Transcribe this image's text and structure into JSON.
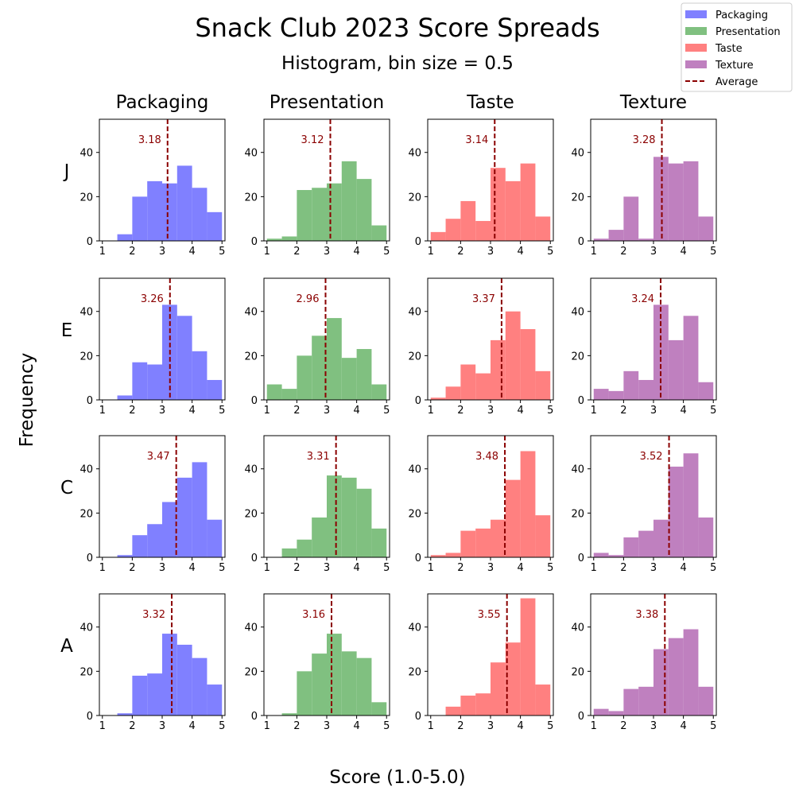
{
  "title": "Snack Club 2023 Score Spreads",
  "subtitle": "Histogram, bin size = 0.5",
  "xlabel": "Score (1.0-5.0)",
  "ylabel": "Frequency",
  "legend": {
    "placement": "top-right",
    "items": [
      {
        "label": "Packaging",
        "color": "#8080ff",
        "kind": "patch"
      },
      {
        "label": "Presentation",
        "color": "#80c080",
        "kind": "patch"
      },
      {
        "label": "Taste",
        "color": "#ff8080",
        "kind": "patch"
      },
      {
        "label": "Texture",
        "color": "#bf80bf",
        "kind": "patch"
      },
      {
        "label": "Average",
        "color": "#8b0000",
        "kind": "dashed-line"
      }
    ]
  },
  "chart_data": {
    "type": "bar",
    "layout": "small-multiples histogram grid",
    "columns": [
      "Packaging",
      "Presentation",
      "Taste",
      "Texture"
    ],
    "rows": [
      "J",
      "E",
      "C",
      "A"
    ],
    "series_colors": {
      "Packaging": "#8080ff",
      "Presentation": "#80c080",
      "Taste": "#ff8080",
      "Texture": "#bf80bf"
    },
    "average_color": "#8b0000",
    "bin_edges": [
      1.0,
      1.5,
      2.0,
      2.5,
      3.0,
      3.5,
      4.0,
      4.5,
      5.0
    ],
    "xlim": [
      0.9,
      5.1
    ],
    "ylim": [
      0,
      55
    ],
    "xticks": [
      1,
      2,
      3,
      4,
      5
    ],
    "yticks": [
      0,
      20,
      40
    ],
    "grid": false,
    "panels": [
      {
        "row": "J",
        "column": "Packaging",
        "counts": [
          0,
          3,
          20,
          27,
          26,
          34,
          24,
          13
        ],
        "average": 3.18
      },
      {
        "row": "J",
        "column": "Presentation",
        "counts": [
          1,
          2,
          23,
          24,
          26,
          36,
          28,
          7
        ],
        "average": 3.12
      },
      {
        "row": "J",
        "column": "Taste",
        "counts": [
          4,
          10,
          18,
          9,
          33,
          27,
          35,
          11
        ],
        "average": 3.14
      },
      {
        "row": "J",
        "column": "Texture",
        "counts": [
          1,
          5,
          20,
          1,
          38,
          35,
          36,
          11
        ],
        "average": 3.28
      },
      {
        "row": "E",
        "column": "Packaging",
        "counts": [
          0,
          2,
          17,
          16,
          43,
          38,
          22,
          9
        ],
        "average": 3.26
      },
      {
        "row": "E",
        "column": "Presentation",
        "counts": [
          7,
          5,
          20,
          29,
          37,
          19,
          23,
          7
        ],
        "average": 2.96
      },
      {
        "row": "E",
        "column": "Taste",
        "counts": [
          1,
          6,
          16,
          12,
          27,
          40,
          32,
          13
        ],
        "average": 3.37
      },
      {
        "row": "E",
        "column": "Texture",
        "counts": [
          5,
          4,
          13,
          9,
          43,
          27,
          38,
          8
        ],
        "average": 3.24
      },
      {
        "row": "C",
        "column": "Packaging",
        "counts": [
          0,
          1,
          10,
          15,
          25,
          36,
          43,
          17
        ],
        "average": 3.47
      },
      {
        "row": "C",
        "column": "Presentation",
        "counts": [
          0,
          4,
          8,
          18,
          37,
          36,
          31,
          13
        ],
        "average": 3.31
      },
      {
        "row": "C",
        "column": "Taste",
        "counts": [
          1,
          2,
          12,
          13,
          17,
          35,
          48,
          19
        ],
        "average": 3.48
      },
      {
        "row": "C",
        "column": "Texture",
        "counts": [
          2,
          1,
          9,
          12,
          17,
          41,
          47,
          18
        ],
        "average": 3.52
      },
      {
        "row": "A",
        "column": "Packaging",
        "counts": [
          0,
          1,
          18,
          19,
          37,
          32,
          26,
          14
        ],
        "average": 3.32
      },
      {
        "row": "A",
        "column": "Presentation",
        "counts": [
          0,
          1,
          20,
          28,
          37,
          29,
          26,
          6
        ],
        "average": 3.16
      },
      {
        "row": "A",
        "column": "Taste",
        "counts": [
          0,
          4,
          9,
          10,
          24,
          33,
          53,
          14
        ],
        "average": 3.55
      },
      {
        "row": "A",
        "column": "Texture",
        "counts": [
          3,
          2,
          12,
          13,
          30,
          35,
          39,
          13
        ],
        "average": 3.38
      }
    ]
  }
}
